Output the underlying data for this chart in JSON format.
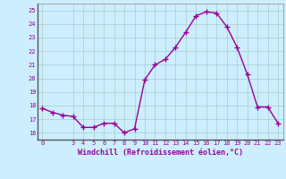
{
  "x": [
    0,
    1,
    2,
    3,
    4,
    5,
    6,
    7,
    8,
    9,
    10,
    11,
    12,
    13,
    14,
    15,
    16,
    17,
    18,
    19,
    20,
    21,
    22,
    23
  ],
  "y": [
    17.8,
    17.5,
    17.3,
    17.2,
    16.4,
    16.4,
    16.7,
    16.7,
    16.0,
    16.3,
    19.9,
    21.0,
    21.4,
    22.3,
    23.4,
    24.6,
    24.9,
    24.8,
    23.8,
    22.3,
    20.3,
    17.9,
    17.9,
    16.7
  ],
  "color": "#990099",
  "bg_color": "#cceeff",
  "grid_color": "#aacccc",
  "xlabel": "Windchill (Refroidissement éolien,°C)",
  "ylim": [
    15.5,
    25.5
  ],
  "yticks": [
    16,
    17,
    18,
    19,
    20,
    21,
    22,
    23,
    24,
    25
  ],
  "xticks": [
    0,
    3,
    4,
    5,
    6,
    7,
    8,
    9,
    10,
    11,
    12,
    13,
    14,
    15,
    16,
    17,
    18,
    19,
    20,
    21,
    22,
    23
  ],
  "marker": "+",
  "markersize": 4,
  "linewidth": 1.0
}
